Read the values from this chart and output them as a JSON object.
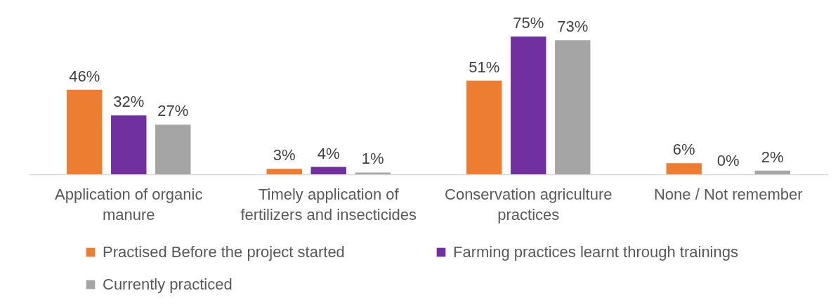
{
  "chart_data": {
    "type": "bar",
    "categories": [
      "Application of organic manure",
      "Timely application of fertilizers and insecticides",
      "Conservation agriculture practices",
      "None / Not remember"
    ],
    "series": [
      {
        "name": "Practised Before the project started",
        "color": "#ed7d31",
        "values": [
          46,
          3,
          51,
          6
        ],
        "value_labels": [
          "46%",
          "3%",
          "51%",
          "6%"
        ]
      },
      {
        "name": "Farming practices learnt through trainings",
        "color": "#7030a0",
        "values": [
          32,
          4,
          75,
          0
        ],
        "value_labels": [
          "32%",
          "4%",
          "75%",
          "0%"
        ]
      },
      {
        "name": "Currently practiced",
        "color": "#a5a5a5",
        "values": [
          27,
          1,
          73,
          2
        ],
        "value_labels": [
          "27%",
          "1%",
          "73%",
          "2%"
        ]
      }
    ],
    "legend": "bottom"
  }
}
